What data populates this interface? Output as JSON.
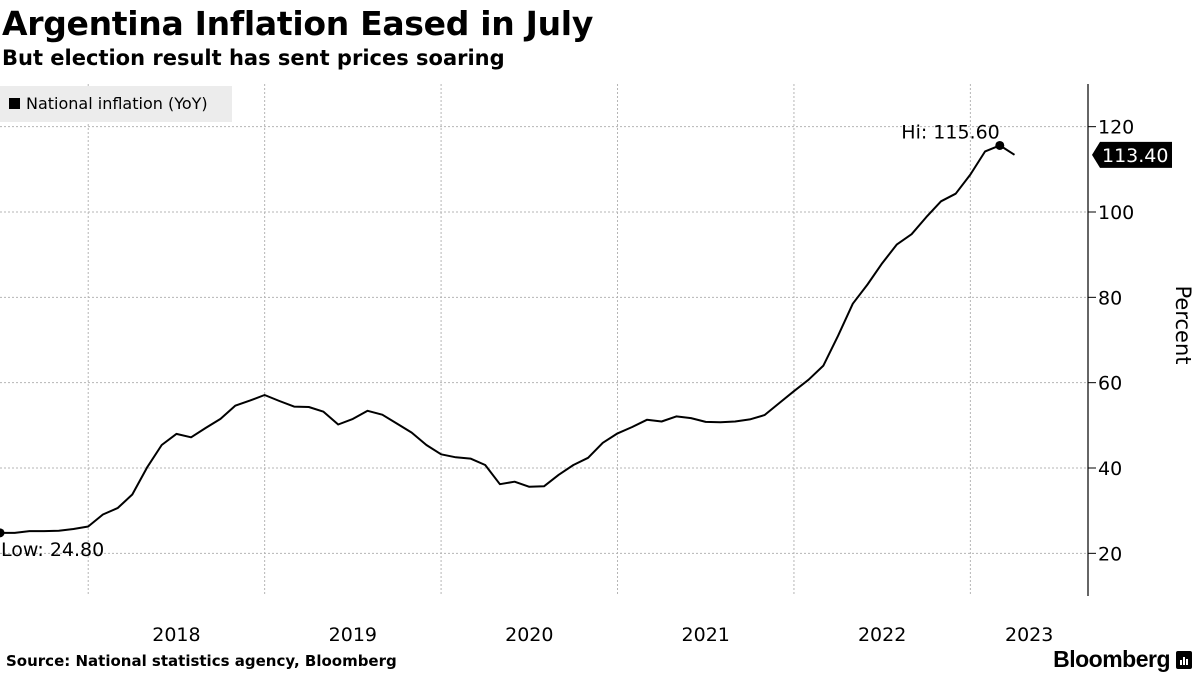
{
  "header": {
    "title": "Argentina Inflation Eased in July",
    "subtitle": "But election result has sent prices soaring"
  },
  "footer": {
    "source": "Source: National statistics agency, Bloomberg",
    "brand": "Bloomberg"
  },
  "chart_data": {
    "type": "line",
    "title": "Argentina Inflation Eased in July",
    "subtitle": "But election result has sent prices soaring",
    "xlabel": "",
    "ylabel": "Percent",
    "ylim": [
      10,
      130
    ],
    "yticks": [
      20,
      40,
      60,
      80,
      100,
      120
    ],
    "xticks": [
      "2018",
      "2019",
      "2020",
      "2021",
      "2022",
      "2023"
    ],
    "x_start": "2017-07",
    "x_end": "2023-07",
    "x_domain_end": "2023-09",
    "grid": true,
    "legend_position": "top-left",
    "line_color": "#000000",
    "series": [
      {
        "name": "National inflation (YoY)",
        "values": [
          24.8,
          24.8,
          25.2,
          25.2,
          25.3,
          25.7,
          26.3,
          29.1,
          30.6,
          33.8,
          40.1,
          45.4,
          48.0,
          47.2,
          49.4,
          51.5,
          54.6,
          55.8,
          57.1,
          55.7,
          54.4,
          54.3,
          53.2,
          50.2,
          51.5,
          53.4,
          52.5,
          50.4,
          48.3,
          45.4,
          43.2,
          42.5,
          42.2,
          40.7,
          36.2,
          36.8,
          35.6,
          35.7,
          38.4,
          40.7,
          42.4,
          45.9,
          48.1,
          49.6,
          51.3,
          50.9,
          52.1,
          51.7,
          50.8,
          50.7,
          50.9,
          51.4,
          52.4,
          55.2,
          58.0,
          60.7,
          64.0,
          71.0,
          78.5,
          83.0,
          88.0,
          92.4,
          94.8,
          98.8,
          102.5,
          104.3,
          108.8,
          114.2,
          115.6,
          113.4
        ]
      }
    ],
    "annotations": {
      "high_label": "Hi: 115.60",
      "low_label": "Low: 24.80",
      "last_label": "113.40"
    }
  }
}
